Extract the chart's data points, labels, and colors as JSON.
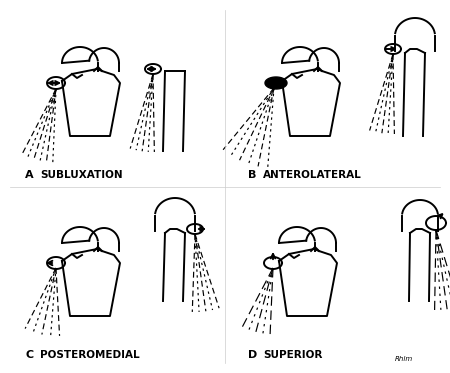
{
  "background_color": "#ffffff",
  "ink_color": "#000000",
  "lw": 1.4,
  "thin_lw": 0.85,
  "panels": {
    "A": "SUBLUXATION",
    "B": "ANTEROLATERAL",
    "C": "POSTEROMEDIAL",
    "D": "SUPERIOR"
  }
}
